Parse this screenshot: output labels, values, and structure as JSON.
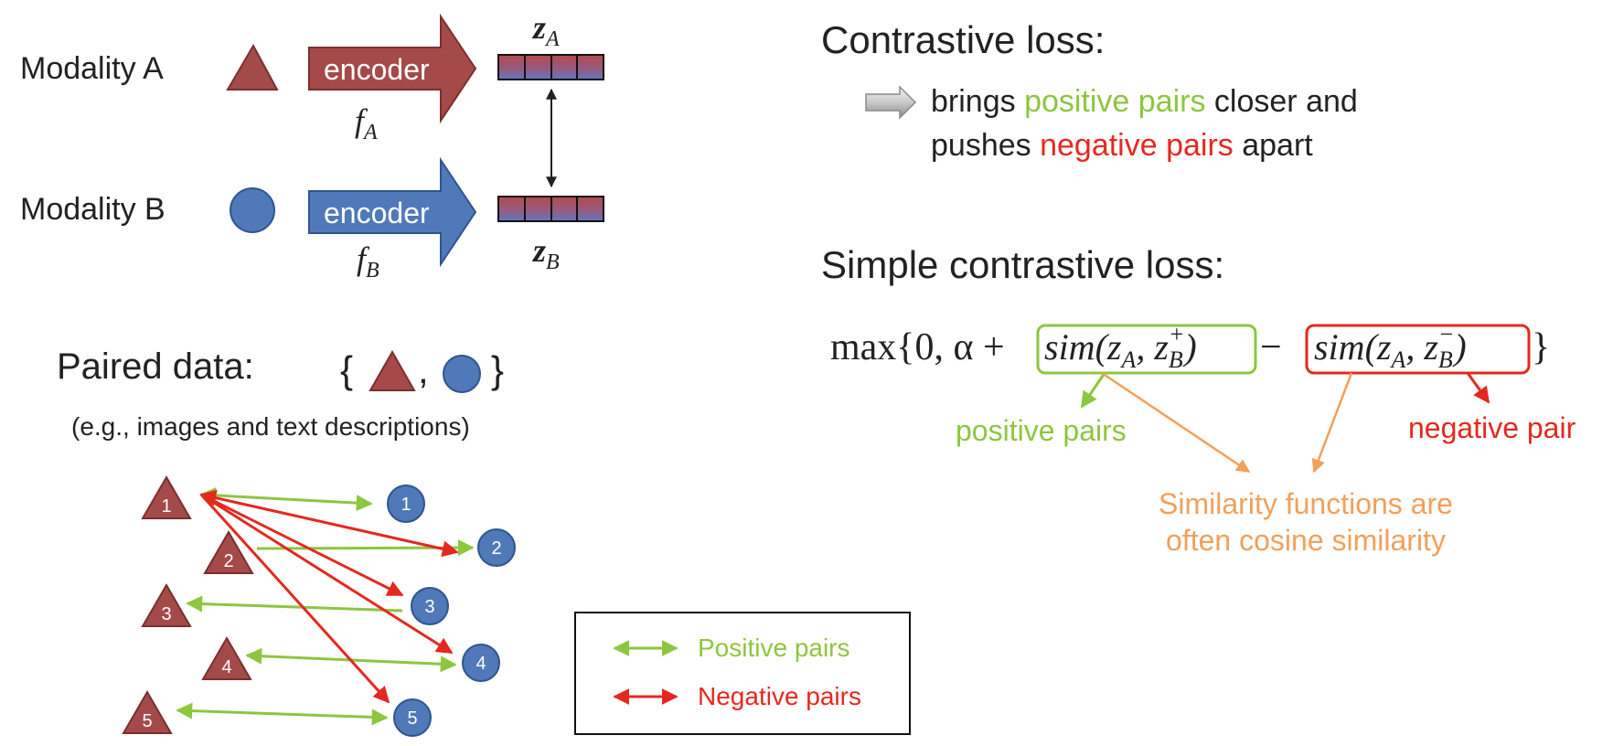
{
  "colors": {
    "red": "#a44a48",
    "blue": "#4f79b8",
    "green": "#8dc63f",
    "neg": "#e5281f",
    "orange": "#f2a05a"
  },
  "encoder_section": {
    "modality_a_label": "Modality A",
    "modality_b_label": "Modality B",
    "encoder_a_label": "encoder",
    "encoder_b_label": "encoder",
    "f_a": "f",
    "f_a_sub": "A",
    "f_b": "f",
    "f_b_sub": "B",
    "z_a": "z",
    "z_a_sub": "A",
    "z_b": "z",
    "z_b_sub": "B"
  },
  "paired_data": {
    "title": "Paired data:",
    "set_open": "{",
    "set_comma": ",",
    "set_close": "}",
    "subtitle": "(e.g., images and text descriptions)"
  },
  "pair_graph": {
    "triangles": [
      "1",
      "2",
      "3",
      "4",
      "5"
    ],
    "circles": [
      "1",
      "2",
      "3",
      "4",
      "5"
    ]
  },
  "legend": {
    "positive": "Positive pairs",
    "negative": "Negative pairs"
  },
  "contrastive": {
    "title": "Contrastive loss:",
    "line1_a": "brings ",
    "line1_b": "positive pairs",
    "line1_c": " closer and",
    "line2_a": "pushes ",
    "line2_b": "negative pairs",
    "line2_c": " apart"
  },
  "simple": {
    "title": "Simple contrastive loss:",
    "formula_prefix": "max{0, α + ",
    "sim_pos": "sim(z",
    "sim_pos_sub_a": "A",
    "sim_pos_mid": ", z",
    "sim_pos_sub_b": "B",
    "sim_pos_sup": "+",
    "sim_pos_close": ")",
    "minus": " − ",
    "sim_neg": "sim(z",
    "sim_neg_sub_a": "A",
    "sim_neg_mid": ", z",
    "sim_neg_sub_b": "B",
    "sim_neg_sup": "−",
    "sim_neg_close": ")",
    "formula_suffix": "}",
    "positive_label": "positive pairs",
    "negative_label": "negative pair",
    "similarity_line1": "Similarity functions are",
    "similarity_line2": "often cosine similarity"
  }
}
